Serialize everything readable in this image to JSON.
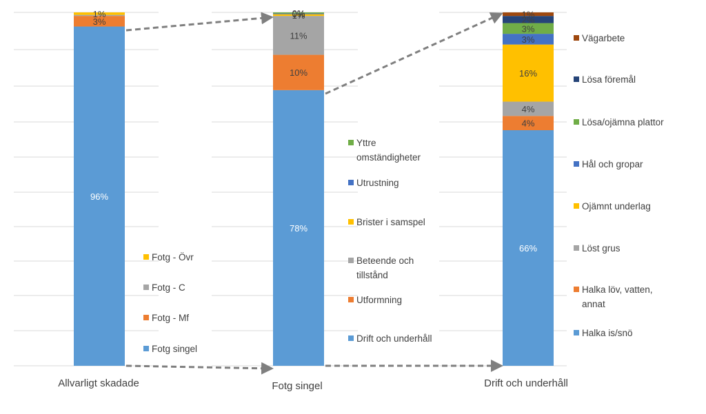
{
  "chart_data": [
    {
      "type": "bar",
      "category": "Allvarligt skadade",
      "series": [
        {
          "name": "Fotg singel",
          "value": 96,
          "label": "96%",
          "color": "#5b9bd5"
        },
        {
          "name": "Fotg - Mf",
          "value": 3,
          "label": "3%",
          "color": "#ed7d31"
        },
        {
          "name": "Fotg - C",
          "value": 0.3,
          "label": "",
          "color": "#a5a5a5"
        },
        {
          "name": "Fotg - Övr",
          "value": 0.7,
          "label": "1%",
          "color": "#ffc000"
        }
      ]
    },
    {
      "type": "bar",
      "category": "Fotg singel",
      "series": [
        {
          "name": "Drift och underhåll",
          "value": 78,
          "label": "78%",
          "color": "#5b9bd5"
        },
        {
          "name": "Utformning",
          "value": 10,
          "label": "10%",
          "color": "#ed7d31"
        },
        {
          "name": "Beteende och tillstånd",
          "value": 11,
          "label": "11%",
          "color": "#a5a5a5"
        },
        {
          "name": "Brister i samspel",
          "value": 0.5,
          "label": "1%",
          "color": "#ffc000"
        },
        {
          "name": "Utrustning",
          "value": 0.2,
          "label": "0%",
          "color": "#4472c4"
        },
        {
          "name": "Yttre omständigheter",
          "value": 0.3,
          "label": "0%",
          "color": "#70ad47"
        }
      ]
    },
    {
      "type": "bar",
      "category": "Drift och underhåll",
      "series": [
        {
          "name": "Halka is/snö",
          "value": 66,
          "label": "66%",
          "color": "#5b9bd5"
        },
        {
          "name": "Halka löv, vatten, annat",
          "value": 4,
          "label": "4%",
          "color": "#ed7d31"
        },
        {
          "name": "Löst grus",
          "value": 4,
          "label": "4%",
          "color": "#a5a5a5"
        },
        {
          "name": "Ojämnt underlag",
          "value": 16,
          "label": "16%",
          "color": "#ffc000"
        },
        {
          "name": "Hål och gropar",
          "value": 3,
          "label": "3%",
          "color": "#4472c4"
        },
        {
          "name": "Lösa/ojämna plattor",
          "value": 3,
          "label": "3%",
          "color": "#70ad47"
        },
        {
          "name": "Lösa föremål",
          "value": 2,
          "label": "2%",
          "color": "#264478"
        },
        {
          "name": "Vägarbete",
          "value": 1,
          "label": "1%",
          "color": "#9e480e"
        }
      ]
    }
  ],
  "legends": [
    {
      "items": [
        "Fotg - Övr",
        "Fotg - C",
        "Fotg - Mf",
        "Fotg singel"
      ]
    },
    {
      "items": [
        "Yttre omständigheter",
        "Utrustning",
        "Brister i samspel",
        "Beteende och tillstånd",
        "Utformning",
        "Drift och underhåll"
      ]
    },
    {
      "items": [
        "Vägarbete",
        "Lösa föremål",
        "Lösa/ojämna plattor",
        "Hål och gropar",
        "Ojämnt underlag",
        "Löst grus",
        "Halka löv, vatten, annat",
        "Halka is/snö"
      ]
    }
  ],
  "colors": {
    "gridline": "#d9d9d9",
    "connector": "#7f7f7f",
    "text": "#404040",
    "label_light": "#ffffff",
    "label_dark": "#404040"
  }
}
